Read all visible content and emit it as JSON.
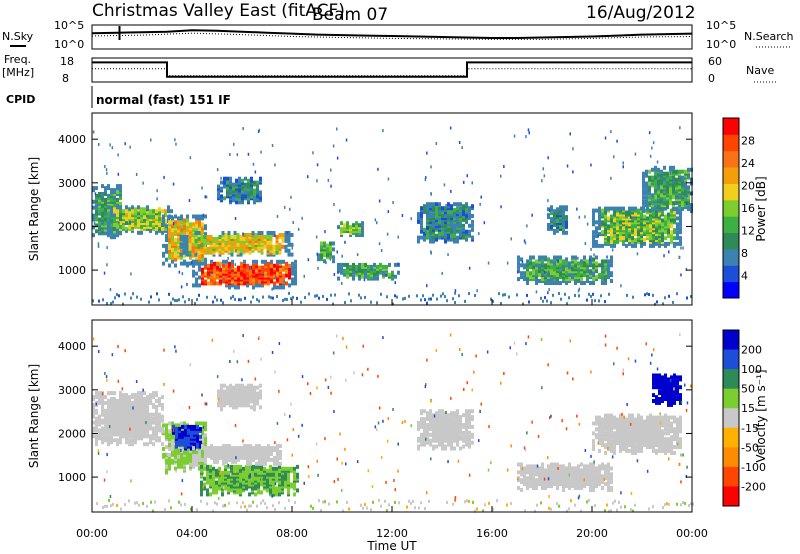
{
  "header": {
    "station": "Christmas Valley East (fitACF)",
    "beam": "Beam 07",
    "date": "16/Aug/2012"
  },
  "chart_data": [
    {
      "type": "line",
      "panel": "noise",
      "left_label": "N.Sky",
      "right_label": "N.Search",
      "left_ticks": [
        "10^5",
        "10^0"
      ],
      "right_ticks": [
        "10^5",
        "10^0"
      ],
      "series": [
        {
          "name": "N.Sky",
          "style": "solid",
          "x": [
            0,
            1,
            2,
            3,
            4,
            5,
            6,
            7,
            8,
            9,
            10,
            11,
            12,
            13,
            14,
            15,
            16,
            17,
            18,
            19,
            20,
            21,
            22,
            23,
            24
          ],
          "y": [
            3.3,
            3.4,
            3.5,
            3.6,
            3.9,
            3.8,
            3.6,
            3.4,
            3.2,
            3.0,
            2.9,
            2.8,
            2.7,
            2.6,
            2.5,
            2.4,
            2.3,
            2.3,
            2.4,
            2.5,
            2.6,
            2.8,
            3.0,
            3.1,
            3.2
          ]
        },
        {
          "name": "N.Search",
          "style": "dotted",
          "x": [
            0,
            2,
            4,
            6,
            8,
            10,
            12,
            14,
            16,
            18,
            20,
            22,
            24
          ],
          "y": [
            2.7,
            2.9,
            3.3,
            3.0,
            2.6,
            2.4,
            2.2,
            2.1,
            2.0,
            2.0,
            2.2,
            2.5,
            2.6
          ]
        }
      ]
    },
    {
      "type": "line",
      "panel": "frequency",
      "left_label": "Freq.",
      "left_unit": "[MHz]",
      "right_label": "Nave",
      "left_ticks": [
        "18",
        "8"
      ],
      "right_ticks": [
        "60",
        "0"
      ],
      "series": [
        {
          "name": "Freq.",
          "style": "solid",
          "x": [
            0,
            3.0,
            3.0,
            15.0,
            15.0,
            24
          ],
          "y": [
            15.8,
            15.8,
            8.6,
            8.6,
            15.8,
            15.8
          ]
        },
        {
          "name": "Nave",
          "style": "dotted",
          "x": [
            0,
            3.0,
            3.0,
            15.0,
            15.0,
            24
          ],
          "y": [
            12.6,
            12.6,
            9.2,
            9.2,
            12.6,
            12.6
          ]
        }
      ]
    },
    {
      "type": "table",
      "panel": "cpid",
      "label": "CPID",
      "value": "normal (fast) 151 IF"
    },
    {
      "type": "heatmap",
      "panel": "power",
      "ylabel": "Slant Range [km]",
      "ylim": [
        200,
        4600
      ],
      "yticks": [
        1000,
        2000,
        3000,
        4000
      ],
      "xlim": [
        0,
        24
      ],
      "colorbar_label": "Power [dB]",
      "colorbar_ticks": [
        4,
        8,
        12,
        16,
        20,
        24,
        28
      ],
      "colorbar_range": [
        0,
        32
      ],
      "colors": [
        "#0000ff",
        "#1d4ed8",
        "#3b82b0",
        "#2e8b57",
        "#3cb043",
        "#7ccd2e",
        "#f2cf1d",
        "#f59e0b",
        "#f97316",
        "#ff4500",
        "#ff0000"
      ],
      "blobs": [
        {
          "t0": 0.0,
          "t1": 1.2,
          "r0": 1800,
          "r1": 3000,
          "v": 11
        },
        {
          "t0": 0.6,
          "t1": 3.2,
          "r0": 1900,
          "r1": 2500,
          "v": 16
        },
        {
          "t0": 2.8,
          "t1": 4.6,
          "r0": 1150,
          "r1": 2300,
          "v": 20
        },
        {
          "t0": 3.5,
          "t1": 8.0,
          "r0": 1400,
          "r1": 1900,
          "v": 19
        },
        {
          "t0": 4.0,
          "t1": 8.2,
          "r0": 650,
          "r1": 1250,
          "v": 27
        },
        {
          "t0": 5.0,
          "t1": 6.8,
          "r0": 2600,
          "r1": 3150,
          "v": 8
        },
        {
          "t0": 9.0,
          "t1": 9.6,
          "r0": 1250,
          "r1": 1700,
          "v": 13
        },
        {
          "t0": 9.8,
          "t1": 10.8,
          "r0": 1850,
          "r1": 2150,
          "v": 14
        },
        {
          "t0": 9.8,
          "t1": 12.2,
          "r0": 850,
          "r1": 1200,
          "v": 12
        },
        {
          "t0": 13.0,
          "t1": 15.2,
          "r0": 1700,
          "r1": 2600,
          "v": 9
        },
        {
          "t0": 17.0,
          "t1": 20.8,
          "r0": 750,
          "r1": 1350,
          "v": 12
        },
        {
          "t0": 18.2,
          "t1": 19.0,
          "r0": 1900,
          "r1": 2500,
          "v": 9
        },
        {
          "t0": 20.0,
          "t1": 23.6,
          "r0": 1600,
          "r1": 2500,
          "v": 14
        },
        {
          "t0": 22.0,
          "t1": 24.0,
          "r0": 2400,
          "r1": 3400,
          "v": 12
        }
      ]
    },
    {
      "type": "heatmap",
      "panel": "velocity",
      "ylabel": "Slant Range [km]",
      "ylim": [
        200,
        4600
      ],
      "yticks": [
        1000,
        2000,
        3000,
        4000
      ],
      "xlim": [
        0,
        24
      ],
      "xlabel": "Time UT",
      "xticks": [
        "00:00",
        "04:00",
        "08:00",
        "12:00",
        "16:00",
        "20:00",
        "00:00"
      ],
      "colorbar_label": "Velocity [m s⁻¹]",
      "colorbar_ticks": [
        200,
        100,
        50,
        15,
        -15,
        -50,
        -100,
        -200
      ],
      "colors": [
        "#ff0000",
        "#ff4500",
        "#ff8c00",
        "#ffb000",
        "#c8c8c8",
        "#7ccd2e",
        "#2e8b57",
        "#1d4ed8",
        "#0000cc"
      ],
      "blobs": [
        {
          "t0": 0.0,
          "t1": 2.8,
          "r0": 1800,
          "r1": 3000,
          "v": 0
        },
        {
          "t0": 2.8,
          "t1": 4.6,
          "r0": 1150,
          "r1": 2300,
          "v": 20
        },
        {
          "t0": 3.2,
          "t1": 4.4,
          "r0": 1700,
          "r1": 2200,
          "v": 150
        },
        {
          "t0": 4.2,
          "t1": 8.2,
          "r0": 650,
          "r1": 1300,
          "v": 30
        },
        {
          "t0": 4.0,
          "t1": 7.6,
          "r0": 1350,
          "r1": 1800,
          "v": 0
        },
        {
          "t0": 5.0,
          "t1": 6.8,
          "r0": 2600,
          "r1": 3150,
          "v": 0
        },
        {
          "t0": 13.0,
          "t1": 15.2,
          "r0": 1700,
          "r1": 2600,
          "v": 0
        },
        {
          "t0": 17.0,
          "t1": 20.8,
          "r0": 750,
          "r1": 1350,
          "v": 0
        },
        {
          "t0": 20.0,
          "t1": 23.6,
          "r0": 1600,
          "r1": 2500,
          "v": 0
        },
        {
          "t0": 22.4,
          "t1": 23.6,
          "r0": 2700,
          "r1": 3400,
          "v": 220
        }
      ]
    }
  ]
}
